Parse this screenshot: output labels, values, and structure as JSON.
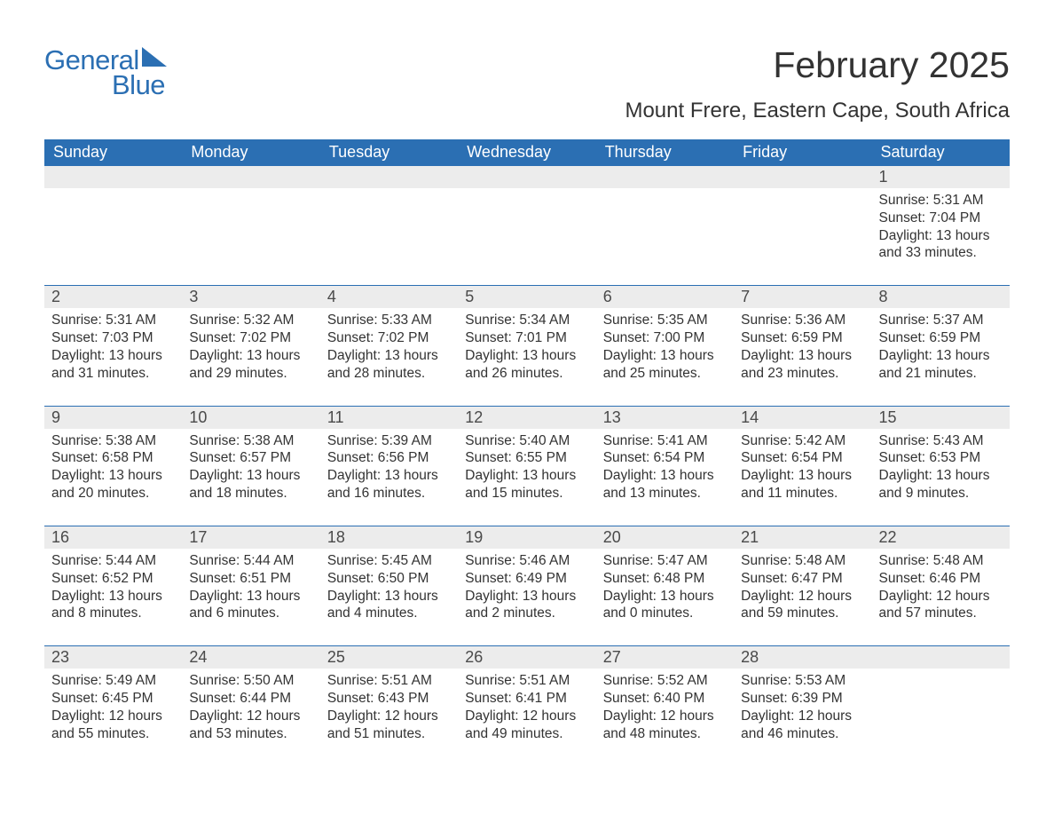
{
  "logo": {
    "general": "General",
    "blue": "Blue"
  },
  "title": "February 2025",
  "location": "Mount Frere, Eastern Cape, South Africa",
  "day_headers": [
    "Sunday",
    "Monday",
    "Tuesday",
    "Wednesday",
    "Thursday",
    "Friday",
    "Saturday"
  ],
  "colors": {
    "brand": "#2b6fb3",
    "header_bg": "#2b6fb3",
    "header_text": "#ffffff",
    "daynum_bg": "#ececec",
    "text": "#333333",
    "background": "#ffffff"
  },
  "typography": {
    "title_fontsize": 41,
    "location_fontsize": 24,
    "dayhead_fontsize": 18,
    "daynum_fontsize": 18,
    "cell_fontsize": 15.5
  },
  "weeks": [
    [
      null,
      null,
      null,
      null,
      null,
      null,
      {
        "day": "1",
        "sunrise": "Sunrise: 5:31 AM",
        "sunset": "Sunset: 7:04 PM",
        "daylight": "Daylight: 13 hours and 33 minutes."
      }
    ],
    [
      {
        "day": "2",
        "sunrise": "Sunrise: 5:31 AM",
        "sunset": "Sunset: 7:03 PM",
        "daylight": "Daylight: 13 hours and 31 minutes."
      },
      {
        "day": "3",
        "sunrise": "Sunrise: 5:32 AM",
        "sunset": "Sunset: 7:02 PM",
        "daylight": "Daylight: 13 hours and 29 minutes."
      },
      {
        "day": "4",
        "sunrise": "Sunrise: 5:33 AM",
        "sunset": "Sunset: 7:02 PM",
        "daylight": "Daylight: 13 hours and 28 minutes."
      },
      {
        "day": "5",
        "sunrise": "Sunrise: 5:34 AM",
        "sunset": "Sunset: 7:01 PM",
        "daylight": "Daylight: 13 hours and 26 minutes."
      },
      {
        "day": "6",
        "sunrise": "Sunrise: 5:35 AM",
        "sunset": "Sunset: 7:00 PM",
        "daylight": "Daylight: 13 hours and 25 minutes."
      },
      {
        "day": "7",
        "sunrise": "Sunrise: 5:36 AM",
        "sunset": "Sunset: 6:59 PM",
        "daylight": "Daylight: 13 hours and 23 minutes."
      },
      {
        "day": "8",
        "sunrise": "Sunrise: 5:37 AM",
        "sunset": "Sunset: 6:59 PM",
        "daylight": "Daylight: 13 hours and 21 minutes."
      }
    ],
    [
      {
        "day": "9",
        "sunrise": "Sunrise: 5:38 AM",
        "sunset": "Sunset: 6:58 PM",
        "daylight": "Daylight: 13 hours and 20 minutes."
      },
      {
        "day": "10",
        "sunrise": "Sunrise: 5:38 AM",
        "sunset": "Sunset: 6:57 PM",
        "daylight": "Daylight: 13 hours and 18 minutes."
      },
      {
        "day": "11",
        "sunrise": "Sunrise: 5:39 AM",
        "sunset": "Sunset: 6:56 PM",
        "daylight": "Daylight: 13 hours and 16 minutes."
      },
      {
        "day": "12",
        "sunrise": "Sunrise: 5:40 AM",
        "sunset": "Sunset: 6:55 PM",
        "daylight": "Daylight: 13 hours and 15 minutes."
      },
      {
        "day": "13",
        "sunrise": "Sunrise: 5:41 AM",
        "sunset": "Sunset: 6:54 PM",
        "daylight": "Daylight: 13 hours and 13 minutes."
      },
      {
        "day": "14",
        "sunrise": "Sunrise: 5:42 AM",
        "sunset": "Sunset: 6:54 PM",
        "daylight": "Daylight: 13 hours and 11 minutes."
      },
      {
        "day": "15",
        "sunrise": "Sunrise: 5:43 AM",
        "sunset": "Sunset: 6:53 PM",
        "daylight": "Daylight: 13 hours and 9 minutes."
      }
    ],
    [
      {
        "day": "16",
        "sunrise": "Sunrise: 5:44 AM",
        "sunset": "Sunset: 6:52 PM",
        "daylight": "Daylight: 13 hours and 8 minutes."
      },
      {
        "day": "17",
        "sunrise": "Sunrise: 5:44 AM",
        "sunset": "Sunset: 6:51 PM",
        "daylight": "Daylight: 13 hours and 6 minutes."
      },
      {
        "day": "18",
        "sunrise": "Sunrise: 5:45 AM",
        "sunset": "Sunset: 6:50 PM",
        "daylight": "Daylight: 13 hours and 4 minutes."
      },
      {
        "day": "19",
        "sunrise": "Sunrise: 5:46 AM",
        "sunset": "Sunset: 6:49 PM",
        "daylight": "Daylight: 13 hours and 2 minutes."
      },
      {
        "day": "20",
        "sunrise": "Sunrise: 5:47 AM",
        "sunset": "Sunset: 6:48 PM",
        "daylight": "Daylight: 13 hours and 0 minutes."
      },
      {
        "day": "21",
        "sunrise": "Sunrise: 5:48 AM",
        "sunset": "Sunset: 6:47 PM",
        "daylight": "Daylight: 12 hours and 59 minutes."
      },
      {
        "day": "22",
        "sunrise": "Sunrise: 5:48 AM",
        "sunset": "Sunset: 6:46 PM",
        "daylight": "Daylight: 12 hours and 57 minutes."
      }
    ],
    [
      {
        "day": "23",
        "sunrise": "Sunrise: 5:49 AM",
        "sunset": "Sunset: 6:45 PM",
        "daylight": "Daylight: 12 hours and 55 minutes."
      },
      {
        "day": "24",
        "sunrise": "Sunrise: 5:50 AM",
        "sunset": "Sunset: 6:44 PM",
        "daylight": "Daylight: 12 hours and 53 minutes."
      },
      {
        "day": "25",
        "sunrise": "Sunrise: 5:51 AM",
        "sunset": "Sunset: 6:43 PM",
        "daylight": "Daylight: 12 hours and 51 minutes."
      },
      {
        "day": "26",
        "sunrise": "Sunrise: 5:51 AM",
        "sunset": "Sunset: 6:41 PM",
        "daylight": "Daylight: 12 hours and 49 minutes."
      },
      {
        "day": "27",
        "sunrise": "Sunrise: 5:52 AM",
        "sunset": "Sunset: 6:40 PM",
        "daylight": "Daylight: 12 hours and 48 minutes."
      },
      {
        "day": "28",
        "sunrise": "Sunrise: 5:53 AM",
        "sunset": "Sunset: 6:39 PM",
        "daylight": "Daylight: 12 hours and 46 minutes."
      },
      null
    ]
  ]
}
